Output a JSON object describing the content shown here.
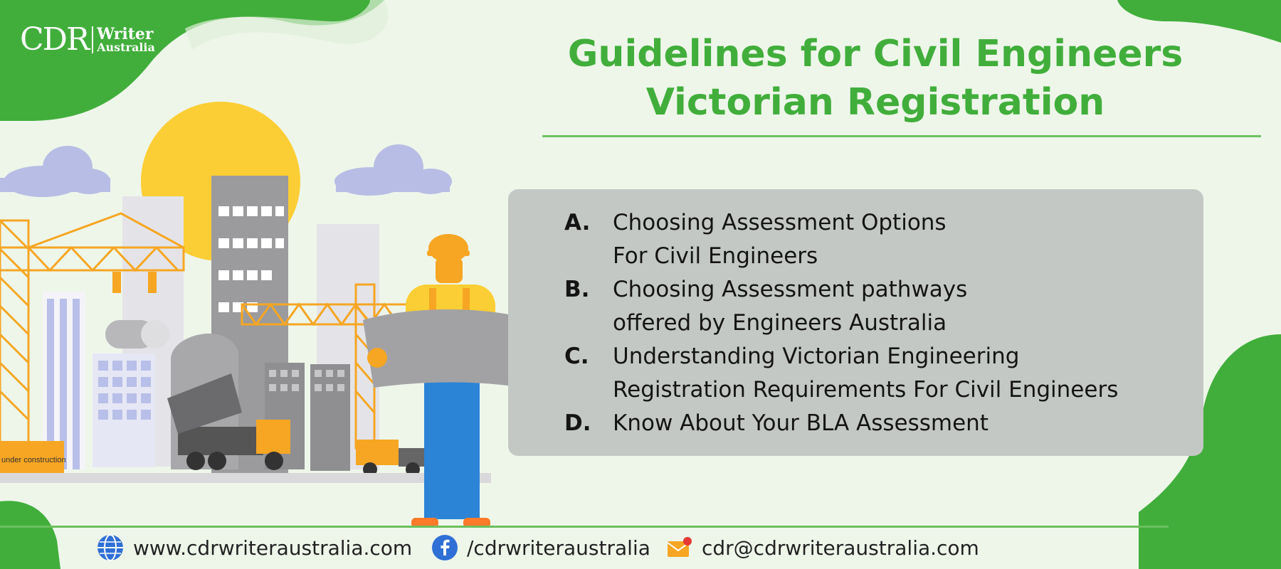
{
  "brand": {
    "logo_mark": "CDR",
    "logo_word1": "Writer",
    "logo_word2": "Australia"
  },
  "title": {
    "line1": "Guidelines for Civil Engineers",
    "line2": "Victorian Registration"
  },
  "items": [
    {
      "letter": "A.",
      "line1": "Choosing Assessment Options",
      "line2": "For Civil Engineers"
    },
    {
      "letter": "B.",
      "line1": "Choosing Assessment pathways",
      "line2": "offered by Engineers Australia"
    },
    {
      "letter": "C.",
      "line1": "Understanding Victorian Engineering",
      "line2": "Registration Requirements For Civil Engineers"
    },
    {
      "letter": "D.",
      "line1": "Know About Your BLA Assessment",
      "line2": ""
    }
  ],
  "illustration": {
    "sign_text": "under construction"
  },
  "footer": {
    "website": "www.cdrwriteraustralia.com",
    "facebook": "/cdrwriteraustralia",
    "email": "cdr@cdrwriteraustralia.com",
    "icons": [
      "globe-icon",
      "facebook-icon",
      "mail-icon"
    ]
  },
  "colors": {
    "brand_green": "#41ae3b",
    "panel_grey": "#c4c8c4",
    "background": "#eef6ea",
    "sun": "#fcce35",
    "crane": "#f6a623"
  }
}
